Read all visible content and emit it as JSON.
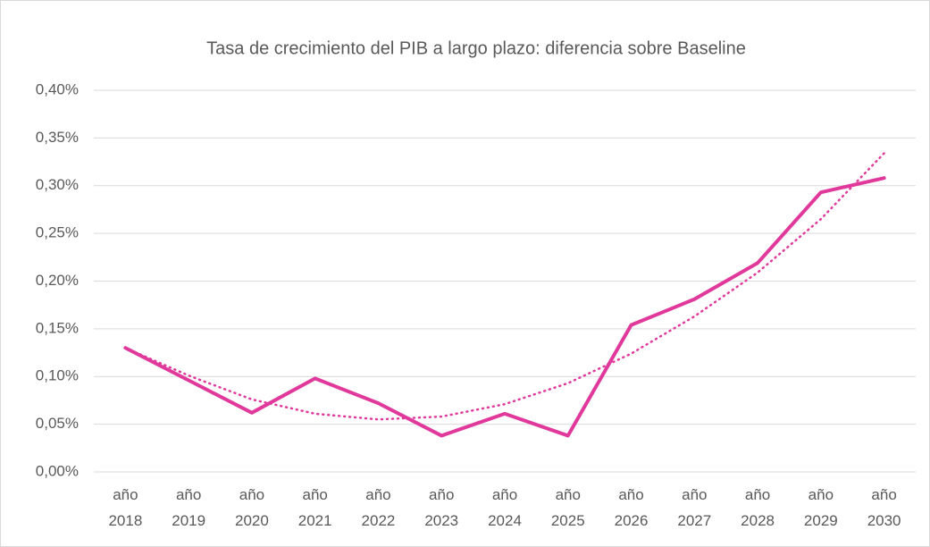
{
  "chart_data": {
    "type": "line",
    "title": "Tasa de crecimiento del PIB a largo plazo: diferencia sobre Baseline",
    "categories": [
      "año 2018",
      "año 2019",
      "año 2020",
      "año 2021",
      "año 2022",
      "año 2023",
      "año 2024",
      "año 2025",
      "año 2026",
      "año 2027",
      "año 2028",
      "año 2029",
      "año 2030"
    ],
    "series": [
      {
        "color": "#e0399b",
        "values": [
          0.13,
          0.096,
          0.062,
          0.098,
          0.072,
          0.038,
          0.061,
          0.038,
          0.154,
          0.181,
          0.219,
          0.293,
          0.308
        ]
      },
      {
        "color": "#e0399b",
        "line_style": "dotted",
        "values": [
          0.13,
          0.101,
          0.076,
          0.061,
          0.055,
          0.058,
          0.071,
          0.093,
          0.124,
          0.163,
          0.209,
          0.265,
          0.334
        ]
      }
    ],
    "ylim": [
      0,
      0.4
    ],
    "yticks": [
      {
        "value": 0,
        "label": "0,00%"
      },
      {
        "value": 0.05,
        "label": "0,05%"
      },
      {
        "value": 0.1,
        "label": "0,10%"
      },
      {
        "value": 0.15,
        "label": "0,15%"
      },
      {
        "value": 0.2,
        "label": "0,20%"
      },
      {
        "value": 0.25,
        "label": "0,25%"
      },
      {
        "value": 0.3,
        "label": "0,30%"
      },
      {
        "value": 0.35,
        "label": "0,35%"
      },
      {
        "value": 0.4,
        "label": "0,40%"
      }
    ],
    "grid": true
  }
}
